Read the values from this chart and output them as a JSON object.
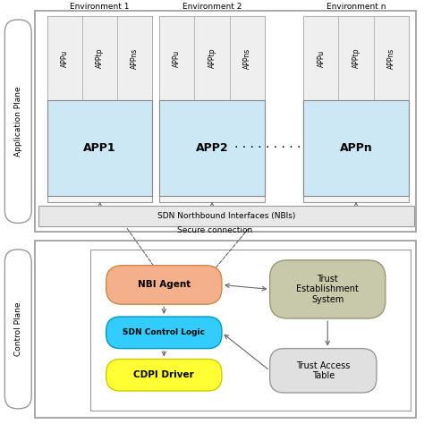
{
  "bg_color": "#ffffff",
  "app_plane_label": "Application Plane",
  "control_plane_label": "Control Plane",
  "nbi_label": "SDN Northbound Interfaces (NBIs)",
  "secure_conn_label": "Secure connection",
  "env_labels": [
    "Environment 1",
    "Environment 2",
    "Environment n"
  ],
  "app_labels": [
    "APP1",
    "APP2",
    "APPn"
  ],
  "app_sub_labels": [
    "APPu",
    "APPtp",
    "APPns"
  ],
  "dots_label": "- - - - - - - - -",
  "nbi_agent_label": "NBI Agent",
  "sdn_control_label": "SDN Control Logic",
  "cdpi_label": "CDPI Driver",
  "trust_est_label": "Trust\nEstablishment\nSystem",
  "trust_access_label": "Trust Access\nTable",
  "env_box_color": "#f5f5f5",
  "env_border_color": "#999999",
  "app_box_color": "#cce8f4",
  "app_border_color": "#888888",
  "sub_box_color": "#efefef",
  "sub_border_color": "#aaaaaa",
  "nbi_box_color": "#e8e8e8",
  "nbi_border_color": "#888888",
  "nbi_agent_color": "#f4b08a",
  "sdn_control_color": "#33ccff",
  "cdpi_color": "#ffff33",
  "trust_est_color": "#c8c8aa",
  "trust_access_color": "#e0e0e0",
  "arrow_color": "#666666",
  "plane_label_color": "#ffffff"
}
